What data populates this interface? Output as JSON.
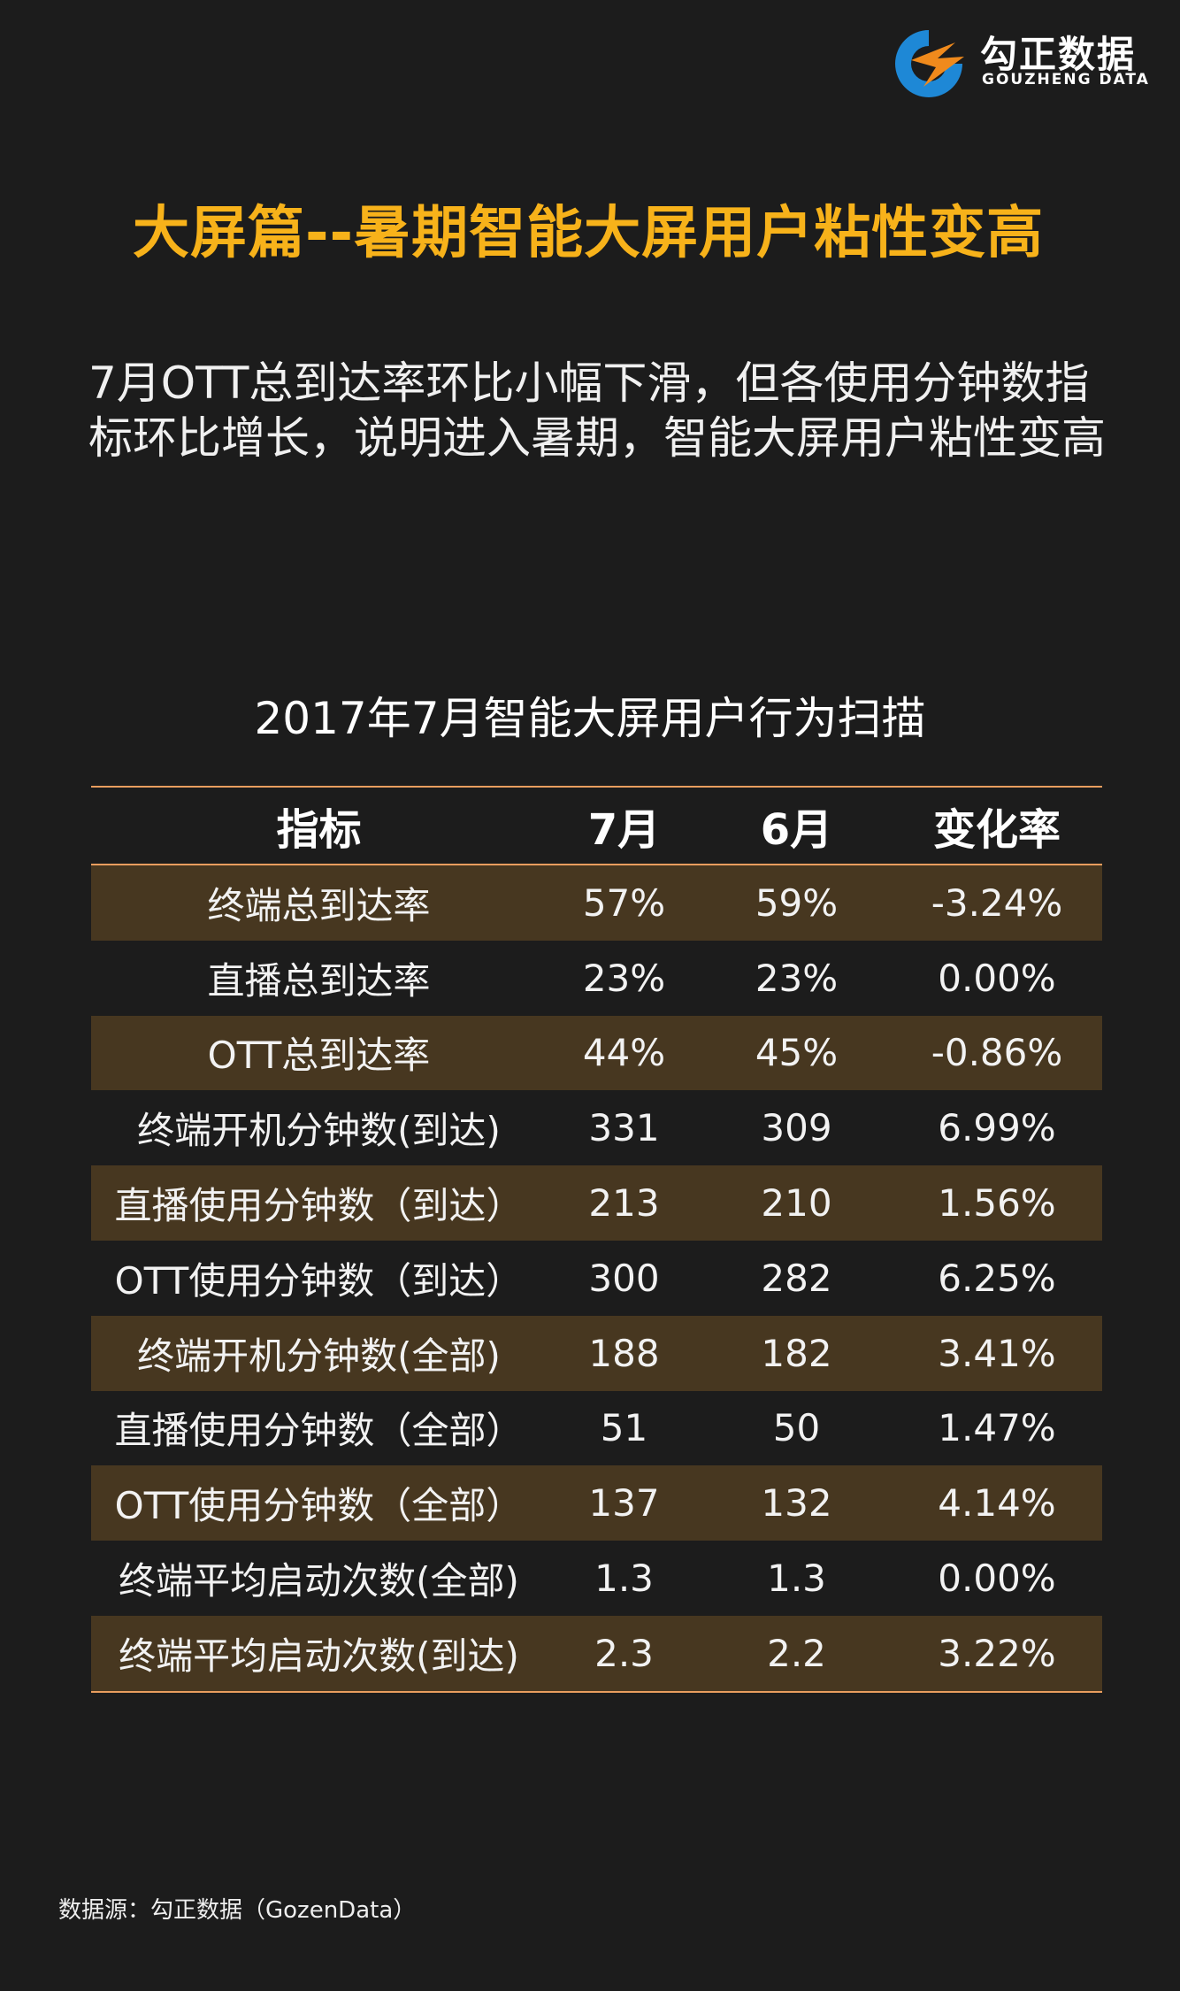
{
  "logo": {
    "name_cn": "勾正数据",
    "name_en": "GOUZHENG DATA"
  },
  "title": "大屏篇--暑期智能大屏用户粘性变高",
  "summary": {
    "line1": "7月OTT总到达率环比小幅下滑，但各使用分钟数指",
    "line2": "标环比增长，说明进入暑期，智能大屏用户粘性变高"
  },
  "chart_data": {
    "type": "table",
    "title": "2017年7月智能大屏用户行为扫描",
    "columns": [
      "指标",
      "7月",
      "6月",
      "变化率"
    ],
    "rows": [
      [
        "终端总到达率",
        "57%",
        "59%",
        "-3.24%"
      ],
      [
        "直播总到达率",
        "23%",
        "23%",
        "0.00%"
      ],
      [
        "OTT总到达率",
        "44%",
        "45%",
        "-0.86%"
      ],
      [
        "终端开机分钟数(到达)",
        "331",
        "309",
        "6.99%"
      ],
      [
        "直播使用分钟数（到达）",
        "213",
        "210",
        "1.56%"
      ],
      [
        "OTT使用分钟数（到达）",
        "300",
        "282",
        "6.25%"
      ],
      [
        "终端开机分钟数(全部)",
        "188",
        "182",
        "3.41%"
      ],
      [
        "直播使用分钟数（全部）",
        "51",
        "50",
        "1.47%"
      ],
      [
        "OTT使用分钟数（全部）",
        "137",
        "132",
        "4.14%"
      ],
      [
        "终端平均启动次数(全部)",
        "1.3",
        "1.3",
        "0.00%"
      ],
      [
        "终端平均启动次数(到达)",
        "2.3",
        "2.2",
        "3.22%"
      ]
    ]
  },
  "colors": {
    "title": "#f7b21a",
    "row_shade": "#473720",
    "rule": "#e89d5e",
    "background": "#1c1c1c"
  },
  "source": "数据源：勾正数据（GozenData）"
}
